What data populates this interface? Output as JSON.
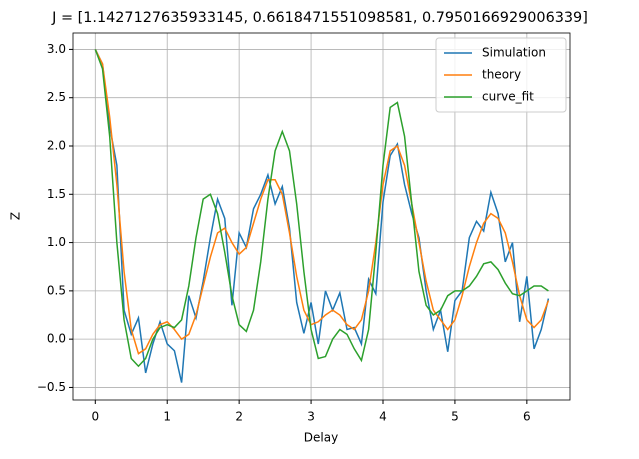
{
  "chart_data": {
    "type": "line",
    "title": "J = [1.1427127635933145, 0.6618471551098581, 0.7950166929006339]",
    "x_label": "Delay",
    "y_label": "Z",
    "x": [
      0,
      0.1,
      0.2,
      0.3,
      0.4,
      0.5,
      0.6,
      0.7,
      0.8,
      0.9,
      1.0,
      1.1,
      1.2,
      1.3,
      1.4,
      1.5,
      1.6,
      1.7,
      1.8,
      1.9,
      2.0,
      2.1,
      2.2,
      2.3,
      2.4,
      2.5,
      2.6,
      2.7,
      2.8,
      2.9,
      3.0,
      3.1,
      3.2,
      3.3,
      3.4,
      3.5,
      3.6,
      3.7,
      3.8,
      3.9,
      4.0,
      4.1,
      4.2,
      4.3,
      4.4,
      4.5,
      4.6,
      4.7,
      4.8,
      4.9,
      5.0,
      5.1,
      5.2,
      5.3,
      5.4,
      5.5,
      5.6,
      5.7,
      5.8,
      5.9,
      6.0,
      6.1,
      6.2,
      6.3
    ],
    "series": [
      {
        "name": "Simulation",
        "color": "#1f77b4",
        "values": [
          3.0,
          2.85,
          2.2,
          1.8,
          0.3,
          0.05,
          0.22,
          -0.35,
          -0.05,
          0.18,
          -0.05,
          -0.12,
          -0.45,
          0.45,
          0.22,
          0.6,
          1.05,
          1.45,
          1.25,
          0.35,
          1.1,
          0.95,
          1.35,
          1.5,
          1.7,
          1.4,
          1.58,
          1.15,
          0.38,
          0.06,
          0.38,
          -0.05,
          0.5,
          0.3,
          0.48,
          0.1,
          0.12,
          -0.05,
          0.62,
          0.47,
          1.42,
          1.9,
          2.02,
          1.6,
          1.3,
          1.05,
          0.5,
          0.1,
          0.3,
          -0.13,
          0.4,
          0.5,
          1.05,
          1.22,
          1.12,
          1.52,
          1.3,
          0.8,
          1.0,
          0.18,
          0.65,
          -0.1,
          0.1,
          0.42
        ]
      },
      {
        "name": "theory",
        "color": "#ff7f0e",
        "values": [
          3.0,
          2.85,
          2.3,
          1.6,
          0.7,
          0.1,
          -0.15,
          -0.1,
          0.05,
          0.15,
          0.18,
          0.1,
          0.0,
          0.05,
          0.25,
          0.55,
          0.85,
          1.1,
          1.15,
          1.0,
          0.88,
          0.95,
          1.2,
          1.45,
          1.65,
          1.65,
          1.5,
          1.1,
          0.65,
          0.3,
          0.15,
          0.18,
          0.25,
          0.3,
          0.25,
          0.15,
          0.1,
          0.2,
          0.5,
          1.0,
          1.6,
          1.95,
          2.0,
          1.8,
          1.4,
          1.0,
          0.6,
          0.3,
          0.2,
          0.1,
          0.2,
          0.45,
          0.75,
          1.0,
          1.2,
          1.3,
          1.25,
          1.1,
          0.8,
          0.45,
          0.2,
          0.12,
          0.2,
          0.4
        ]
      },
      {
        "name": "curve_fit",
        "color": "#2ca02c",
        "values": [
          3.0,
          2.8,
          2.1,
          1.0,
          0.2,
          -0.2,
          -0.28,
          -0.2,
          0.0,
          0.12,
          0.15,
          0.12,
          0.2,
          0.55,
          1.05,
          1.45,
          1.5,
          1.3,
          0.9,
          0.45,
          0.15,
          0.08,
          0.3,
          0.8,
          1.45,
          1.95,
          2.15,
          1.95,
          1.4,
          0.7,
          0.1,
          -0.2,
          -0.18,
          0.0,
          0.1,
          0.05,
          -0.1,
          -0.22,
          0.1,
          0.9,
          1.8,
          2.4,
          2.45,
          2.1,
          1.4,
          0.7,
          0.35,
          0.25,
          0.3,
          0.45,
          0.5,
          0.5,
          0.55,
          0.65,
          0.78,
          0.8,
          0.72,
          0.58,
          0.47,
          0.45,
          0.5,
          0.55,
          0.55,
          0.5
        ]
      }
    ],
    "xlim": [
      -0.31,
      6.6
    ],
    "ylim": [
      -0.63,
      3.17
    ],
    "xticks": [
      0,
      1,
      2,
      3,
      4,
      5,
      6
    ],
    "yticks": [
      {
        "value": -0.5,
        "label": "−0.5"
      },
      {
        "value": 0,
        "label": "0.0"
      },
      0.5,
      {
        "value": 1,
        "label": "1.0"
      },
      1.5,
      {
        "value": 2,
        "label": "2.0"
      },
      2.5,
      {
        "value": 3,
        "label": "3.0"
      }
    ],
    "grid": true,
    "legend": "upper right"
  }
}
